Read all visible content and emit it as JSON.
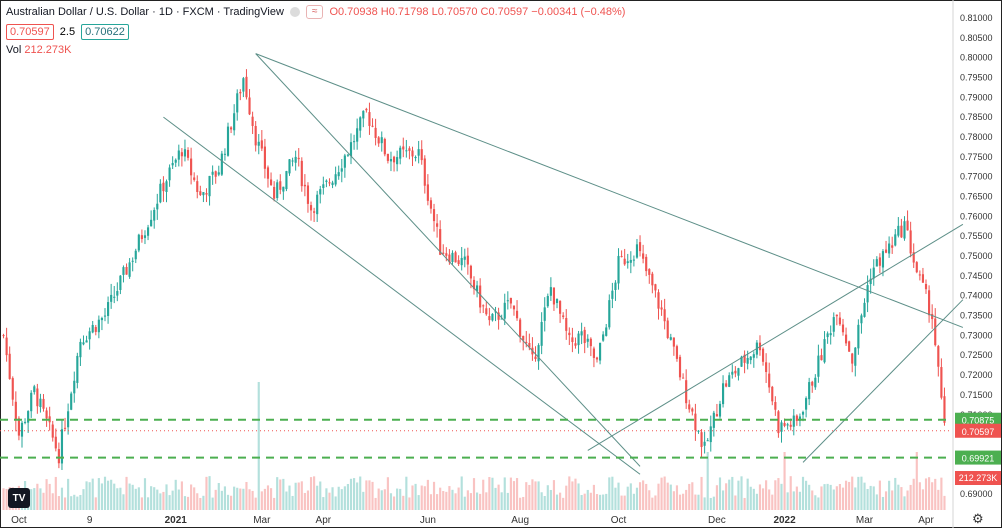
{
  "header": {
    "title": "Australian Dollar / U.S. Dollar · 1D · FXCM · TradingView",
    "badge": "≈",
    "ohlc_label": "O0.70938 H0.71798 L0.70570 C0.70597 −0.00341 (−0.48%)",
    "price_box_1": "0.70597",
    "spread": "2.5",
    "price_box_2": "0.70622",
    "vol_label": "Vol",
    "vol_value": "212.273K",
    "logo": "TV"
  },
  "icons": {
    "gear": "gear-icon"
  },
  "colors": {
    "up": "#26a69a",
    "down": "#ef5350",
    "hline": "#4caf50",
    "trend": "#5d8f88"
  },
  "chart_data": {
    "type": "candlestick",
    "title": "Australian Dollar / U.S. Dollar · 1D · FXCM · TradingView",
    "ylim": [
      0.686,
      0.812
    ],
    "y_ticks": [
      "0.81000",
      "0.80500",
      "0.80000",
      "0.79500",
      "0.79000",
      "0.78500",
      "0.78000",
      "0.77500",
      "0.77000",
      "0.76500",
      "0.76000",
      "0.75500",
      "0.75000",
      "0.74500",
      "0.74000",
      "0.73500",
      "0.73000",
      "0.72500",
      "0.72000",
      "0.71500",
      "0.71000",
      "0.70500",
      "0.70000",
      "0.69500",
      "0.69000"
    ],
    "x_ticks": [
      "Oct",
      "9",
      "2021",
      "Mar",
      "Apr",
      "Jun",
      "Aug",
      "Oct",
      "Dec",
      "2022",
      "Mar",
      "Apr"
    ],
    "keypoints": [
      {
        "i": 0,
        "p": 0.73
      },
      {
        "i": 5,
        "p": 0.705
      },
      {
        "i": 10,
        "p": 0.716
      },
      {
        "i": 18,
        "p": 0.7
      },
      {
        "i": 25,
        "p": 0.729
      },
      {
        "i": 33,
        "p": 0.735
      },
      {
        "i": 42,
        "p": 0.75
      },
      {
        "i": 52,
        "p": 0.768
      },
      {
        "i": 58,
        "p": 0.777
      },
      {
        "i": 64,
        "p": 0.765
      },
      {
        "i": 70,
        "p": 0.772
      },
      {
        "i": 78,
        "p": 0.795
      },
      {
        "i": 82,
        "p": 0.78
      },
      {
        "i": 88,
        "p": 0.765
      },
      {
        "i": 95,
        "p": 0.775
      },
      {
        "i": 100,
        "p": 0.762
      },
      {
        "i": 107,
        "p": 0.77
      },
      {
        "i": 113,
        "p": 0.778
      },
      {
        "i": 118,
        "p": 0.786
      },
      {
        "i": 125,
        "p": 0.775
      },
      {
        "i": 135,
        "p": 0.776
      },
      {
        "i": 142,
        "p": 0.752
      },
      {
        "i": 150,
        "p": 0.748
      },
      {
        "i": 158,
        "p": 0.733
      },
      {
        "i": 165,
        "p": 0.738
      },
      {
        "i": 172,
        "p": 0.723
      },
      {
        "i": 178,
        "p": 0.742
      },
      {
        "i": 184,
        "p": 0.728
      },
      {
        "i": 188,
        "p": 0.73
      },
      {
        "i": 193,
        "p": 0.723
      },
      {
        "i": 200,
        "p": 0.748
      },
      {
        "i": 206,
        "p": 0.752
      },
      {
        "i": 214,
        "p": 0.736
      },
      {
        "i": 222,
        "p": 0.715
      },
      {
        "i": 228,
        "p": 0.701
      },
      {
        "i": 234,
        "p": 0.717
      },
      {
        "i": 240,
        "p": 0.723
      },
      {
        "i": 246,
        "p": 0.728
      },
      {
        "i": 252,
        "p": 0.707
      },
      {
        "i": 258,
        "p": 0.708
      },
      {
        "i": 265,
        "p": 0.723
      },
      {
        "i": 271,
        "p": 0.737
      },
      {
        "i": 276,
        "p": 0.724
      },
      {
        "i": 282,
        "p": 0.746
      },
      {
        "i": 288,
        "p": 0.752
      },
      {
        "i": 293,
        "p": 0.758
      },
      {
        "i": 297,
        "p": 0.746
      },
      {
        "i": 302,
        "p": 0.735
      },
      {
        "i": 306,
        "p": 0.706
      }
    ],
    "candle_count": 307,
    "hlines": [
      {
        "value": 0.70875,
        "label": "0.70875"
      },
      {
        "value": 0.69921,
        "label": "0.69921"
      }
    ],
    "trendlines": [
      {
        "from": [
          82,
          0.801
        ],
        "to": [
          207,
          0.697
        ]
      },
      {
        "from": [
          52,
          0.785
        ],
        "to": [
          207,
          0.695
        ]
      },
      {
        "from": [
          190,
          0.701
        ],
        "to": [
          312,
          0.758
        ]
      },
      {
        "from": [
          82,
          0.801
        ],
        "to": [
          312,
          0.732
        ]
      },
      {
        "from": [
          260,
          0.698
        ],
        "to": [
          312,
          0.739
        ]
      }
    ],
    "last_price": {
      "value": 0.70597,
      "label": "0.70597"
    },
    "volume_label": "212.273K"
  }
}
